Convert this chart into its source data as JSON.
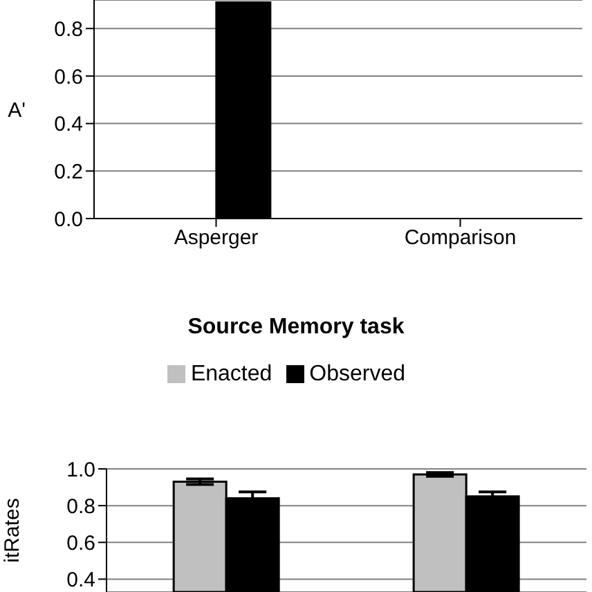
{
  "chart_data": [
    {
      "type": "bar",
      "ylabel": "A'",
      "categories": [
        "Asperger",
        "Comparison"
      ],
      "series": [
        {
          "color": "#c0c0c0",
          "values": [
            null,
            null
          ]
        },
        {
          "color": "#000000",
          "values": [
            0.91,
            null
          ]
        }
      ],
      "ylim": [
        0,
        0.92
      ],
      "yticks": [
        {
          "value": 0,
          "label": "0.0"
        },
        0.2,
        0.4,
        0.6,
        0.8
      ],
      "grid": "y"
    },
    {
      "type": "bar",
      "title": "Source Memory task",
      "ylabel": "itRates",
      "categories": [
        null,
        null
      ],
      "series": [
        {
          "name": "Enacted",
          "color": "#c0c0c0",
          "values": [
            0.93,
            0.97
          ],
          "errors": [
            0.015,
            0.01
          ]
        },
        {
          "name": "Observed",
          "color": "#000000",
          "values": [
            0.84,
            0.85
          ],
          "errors": [
            0.035,
            0.025
          ]
        }
      ],
      "ylim": [
        0.33,
        1.0
      ],
      "yticks": [
        0.4,
        0.6,
        0.8,
        {
          "value": 1,
          "label": "1.0"
        }
      ],
      "grid": "y",
      "legend": "top"
    }
  ]
}
